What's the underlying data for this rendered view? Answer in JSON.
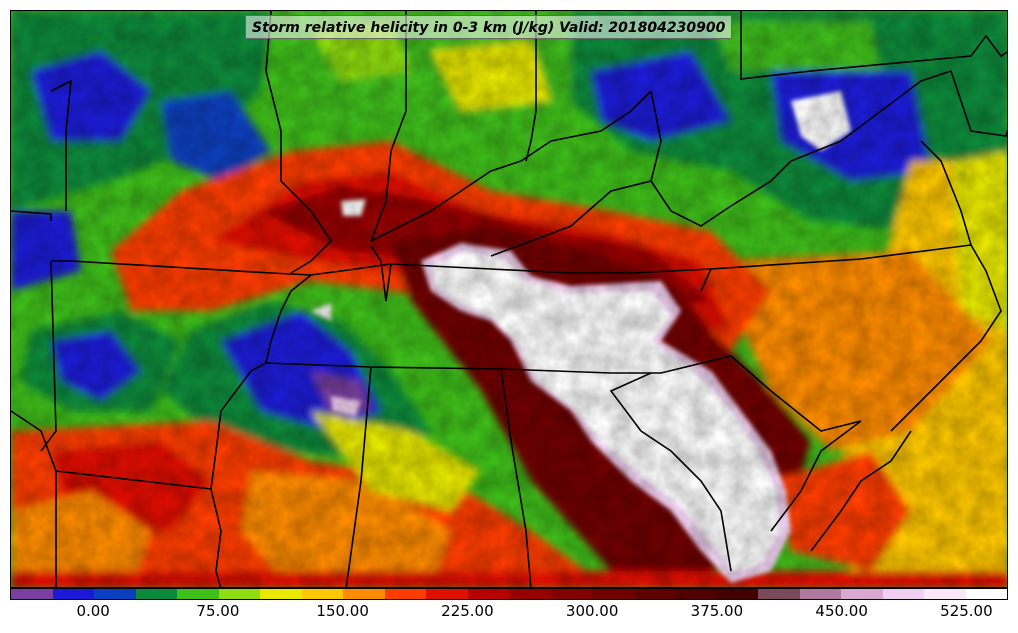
{
  "map": {
    "title": "Storm relative helicity in 0-3 km (J/kg) Valid: 201804230900",
    "colorbar": {
      "levels": [
        -50,
        -25,
        0,
        25,
        50,
        75,
        100,
        125,
        150,
        175,
        200,
        225,
        250,
        275,
        300,
        325,
        350,
        375,
        400,
        425,
        450,
        475,
        500,
        525,
        550
      ],
      "colors": [
        "#7a3fa0",
        "#1c1ad8",
        "#0a40c0",
        "#0a8a3a",
        "#3fbf1a",
        "#8fdc10",
        "#e8e800",
        "#ffc800",
        "#ff8c00",
        "#ff3c00",
        "#e01000",
        "#b40000",
        "#960000",
        "#820000",
        "#700000",
        "#5e0000",
        "#500000",
        "#420000",
        "#7a4a5a",
        "#b07aa0",
        "#d8a8d0",
        "#f0d0f0",
        "#f8e8f8",
        "#ffffff"
      ],
      "tick_labels": [
        "0.00",
        "75.00",
        "150.00",
        "225.00",
        "300.00",
        "375.00",
        "450.00",
        "525.00"
      ],
      "tick_values": [
        0,
        75,
        150,
        225,
        300,
        375,
        450,
        525
      ]
    }
  }
}
